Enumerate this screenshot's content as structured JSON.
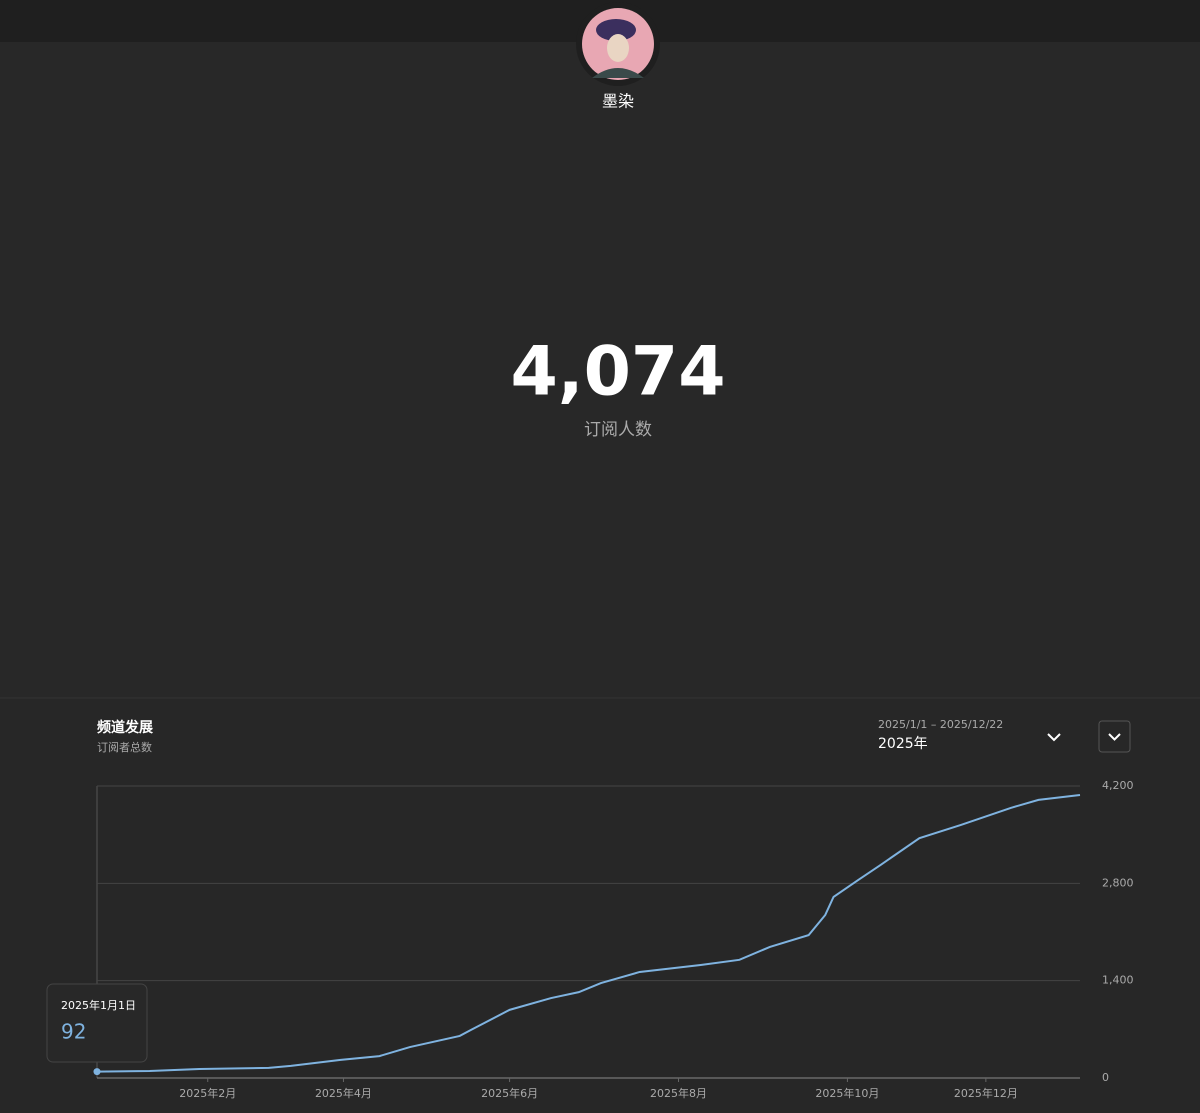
{
  "channel": {
    "name": "墨染",
    "subscriber_count": "4,074",
    "subscriber_label": "订阅人数"
  },
  "panel": {
    "title": "频道发展",
    "subtitle": "订阅者总数",
    "date_range": "2025/1/1 – 2025/12/22",
    "period": "2025年"
  },
  "tooltip": {
    "date": "2025年1月1日",
    "value": "92"
  },
  "chart_data": {
    "type": "line",
    "x": [
      0,
      19,
      37,
      62,
      70,
      88,
      102,
      113,
      131,
      135,
      149,
      164,
      174,
      182,
      196,
      218,
      232,
      243,
      257,
      263,
      266,
      275,
      283,
      297,
      312,
      330,
      340,
      355
    ],
    "series": [
      {
        "name": "订阅者总数",
        "color": "#7fb3e0",
        "values": [
          92,
          100,
          130,
          145,
          175,
          260,
          315,
          445,
          605,
          690,
          980,
          1150,
          1235,
          1365,
          1525,
          1625,
          1700,
          1885,
          2055,
          2345,
          2605,
          2850,
          3065,
          3450,
          3640,
          3885,
          4000,
          4070
        ]
      }
    ],
    "xlim": [
      0,
      355
    ],
    "xticks": [
      {
        "value": 40,
        "label": "2025年2月"
      },
      {
        "value": 89,
        "label": "2025年4月"
      },
      {
        "value": 149,
        "label": "2025年6月"
      },
      {
        "value": 210,
        "label": "2025年8月"
      },
      {
        "value": 271,
        "label": "2025年10月"
      },
      {
        "value": 321,
        "label": "2025年12月"
      }
    ],
    "ylim": [
      0,
      4200
    ],
    "yticks": [
      0,
      {
        "value": 1400,
        "label": "1,400"
      },
      {
        "value": 2800,
        "label": "2,800"
      },
      {
        "value": 4200,
        "label": "4,200"
      }
    ],
    "grid": true
  }
}
